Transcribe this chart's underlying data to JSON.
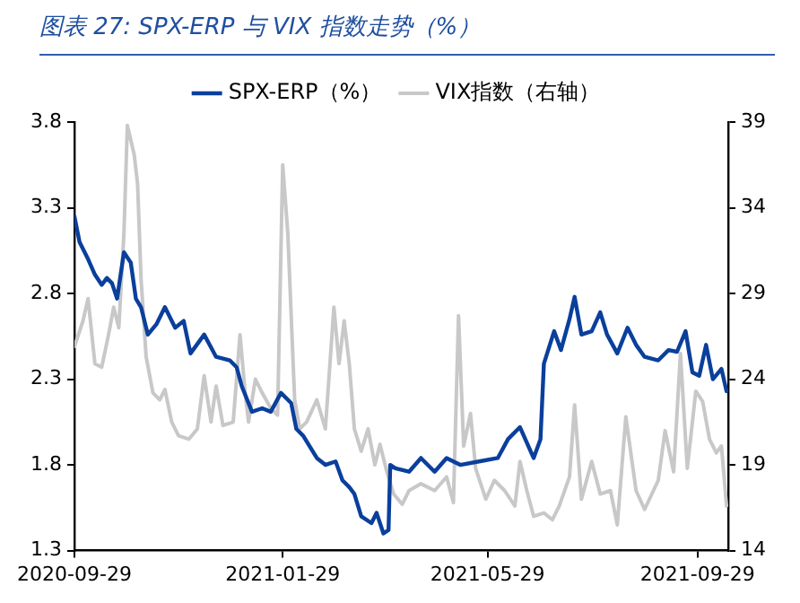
{
  "chart_data": {
    "type": "line",
    "title": "图表 27: SPX-ERP 与 VIX 指数走势（%）",
    "legend": "top",
    "marker": "none",
    "line_style": "solid",
    "xlim": [
      "2020-09-29",
      "2021-10-17"
    ],
    "xticks": [
      "2020-09-29",
      "2021-01-29",
      "2021-05-29",
      "2021-09-29"
    ],
    "ylim": [
      1.3,
      3.8
    ],
    "yticks": [
      1.3,
      1.8,
      2.3,
      2.8,
      3.3,
      3.8
    ],
    "y2lim": [
      14,
      39
    ],
    "y2ticks": [
      14,
      19,
      24,
      29,
      34,
      39
    ],
    "series": [
      {
        "name": "SPX-ERP（%）",
        "color": "#0a3f9c",
        "x": [
          "2020-09-29",
          "2020-10-02",
          "2020-10-07",
          "2020-10-11",
          "2020-10-15",
          "2020-10-18",
          "2020-10-21",
          "2020-10-24",
          "2020-10-28",
          "2020-11-01",
          "2020-11-04",
          "2020-11-07",
          "2020-11-11",
          "2020-11-16",
          "2020-11-21",
          "2020-11-27",
          "2020-12-02",
          "2020-12-06",
          "2020-12-14",
          "2020-12-21",
          "2020-12-29",
          "2021-01-02",
          "2021-01-05",
          "2021-01-11",
          "2021-01-17",
          "2021-01-22",
          "2021-01-28",
          "2021-02-03",
          "2021-02-06",
          "2021-02-10",
          "2021-02-18",
          "2021-02-23",
          "2021-03-01",
          "2021-03-05",
          "2021-03-09",
          "2021-03-12",
          "2021-03-16",
          "2021-03-22",
          "2021-03-25",
          "2021-03-29",
          "2021-04-01",
          "2021-04-02",
          "2021-04-05",
          "2021-04-13",
          "2021-04-20",
          "2021-04-28",
          "2021-05-05",
          "2021-05-13",
          "2021-05-24",
          "2021-06-04",
          "2021-06-10",
          "2021-06-17",
          "2021-06-25",
          "2021-06-29",
          "2021-07-01",
          "2021-07-07",
          "2021-07-11",
          "2021-07-16",
          "2021-07-19",
          "2021-07-23",
          "2021-07-29",
          "2021-08-03",
          "2021-08-07",
          "2021-08-13",
          "2021-08-19",
          "2021-08-24",
          "2021-08-29",
          "2021-09-06",
          "2021-09-12",
          "2021-09-17",
          "2021-09-22",
          "2021-09-26",
          "2021-09-30",
          "2021-10-04",
          "2021-10-08",
          "2021-10-13",
          "2021-10-16"
        ],
        "values": [
          3.25,
          3.1,
          3.0,
          2.91,
          2.85,
          2.89,
          2.86,
          2.77,
          3.04,
          2.98,
          2.77,
          2.72,
          2.56,
          2.62,
          2.72,
          2.6,
          2.64,
          2.45,
          2.56,
          2.43,
          2.41,
          2.37,
          2.26,
          2.11,
          2.13,
          2.11,
          2.22,
          2.16,
          2.01,
          1.97,
          1.84,
          1.8,
          1.82,
          1.71,
          1.67,
          1.63,
          1.5,
          1.46,
          1.52,
          1.4,
          1.42,
          1.8,
          1.78,
          1.76,
          1.84,
          1.76,
          1.84,
          1.8,
          1.82,
          1.84,
          1.95,
          2.02,
          1.84,
          1.95,
          2.39,
          2.58,
          2.47,
          2.65,
          2.78,
          2.56,
          2.58,
          2.69,
          2.56,
          2.45,
          2.6,
          2.5,
          2.43,
          2.41,
          2.47,
          2.46,
          2.58,
          2.34,
          2.32,
          2.5,
          2.3,
          2.36,
          2.23
        ]
      },
      {
        "name": "VIX指数（右轴）",
        "color": "#c8c8c8",
        "axis": "y2",
        "x": [
          "2020-09-29",
          "2020-10-04",
          "2020-10-07",
          "2020-10-11",
          "2020-10-15",
          "2020-10-19",
          "2020-10-22",
          "2020-10-25",
          "2020-10-28",
          "2020-10-30",
          "2020-11-03",
          "2020-11-05",
          "2020-11-07",
          "2020-11-10",
          "2020-11-14",
          "2020-11-18",
          "2020-11-21",
          "2020-11-25",
          "2020-11-29",
          "2020-12-05",
          "2020-12-10",
          "2020-12-14",
          "2020-12-18",
          "2020-12-21",
          "2020-12-25",
          "2020-12-31",
          "2021-01-04",
          "2021-01-07",
          "2021-01-09",
          "2021-01-13",
          "2021-01-17",
          "2021-01-22",
          "2021-01-26",
          "2021-01-29",
          "2021-02-01",
          "2021-02-05",
          "2021-02-08",
          "2021-02-12",
          "2021-02-18",
          "2021-02-23",
          "2021-02-28",
          "2021-03-03",
          "2021-03-06",
          "2021-03-09",
          "2021-03-12",
          "2021-03-16",
          "2021-03-20",
          "2021-03-24",
          "2021-03-27",
          "2021-03-31",
          "2021-04-04",
          "2021-04-09",
          "2021-04-13",
          "2021-04-20",
          "2021-04-28",
          "2021-05-05",
          "2021-05-09",
          "2021-05-12",
          "2021-05-15",
          "2021-05-19",
          "2021-05-22",
          "2021-05-28",
          "2021-06-02",
          "2021-06-08",
          "2021-06-14",
          "2021-06-17",
          "2021-06-21",
          "2021-06-25",
          "2021-07-01",
          "2021-07-06",
          "2021-07-10",
          "2021-07-16",
          "2021-07-19",
          "2021-07-23",
          "2021-07-29",
          "2021-08-03",
          "2021-08-09",
          "2021-08-13",
          "2021-08-18",
          "2021-08-24",
          "2021-08-29",
          "2021-09-06",
          "2021-09-10",
          "2021-09-15",
          "2021-09-19",
          "2021-09-23",
          "2021-09-28",
          "2021-10-02",
          "2021-10-06",
          "2021-10-10",
          "2021-10-13",
          "2021-10-16"
        ],
        "values": [
          25.9,
          27.4,
          28.7,
          24.9,
          24.7,
          26.6,
          28.2,
          27.0,
          32.5,
          38.8,
          37.1,
          35.4,
          29.9,
          25.3,
          23.2,
          22.8,
          23.4,
          21.5,
          20.7,
          20.5,
          21.1,
          24.2,
          21.5,
          23.6,
          21.3,
          21.5,
          26.6,
          23.2,
          21.5,
          24.0,
          23.2,
          22.3,
          21.9,
          36.5,
          32.5,
          22.8,
          21.1,
          21.5,
          22.8,
          21.1,
          28.2,
          24.9,
          27.4,
          24.9,
          21.1,
          19.8,
          21.1,
          19.0,
          20.2,
          18.6,
          17.3,
          16.7,
          17.5,
          17.9,
          17.5,
          18.3,
          16.8,
          27.7,
          20.1,
          22.0,
          18.8,
          17.0,
          18.1,
          17.5,
          16.6,
          19.2,
          17.5,
          16.0,
          16.2,
          15.8,
          16.6,
          18.3,
          22.5,
          17.0,
          19.2,
          17.3,
          17.5,
          15.5,
          21.8,
          17.5,
          16.4,
          18.1,
          21.0,
          18.6,
          25.5,
          18.8,
          23.3,
          22.7,
          20.5,
          19.7,
          20.1,
          16.6
        ]
      }
    ]
  }
}
